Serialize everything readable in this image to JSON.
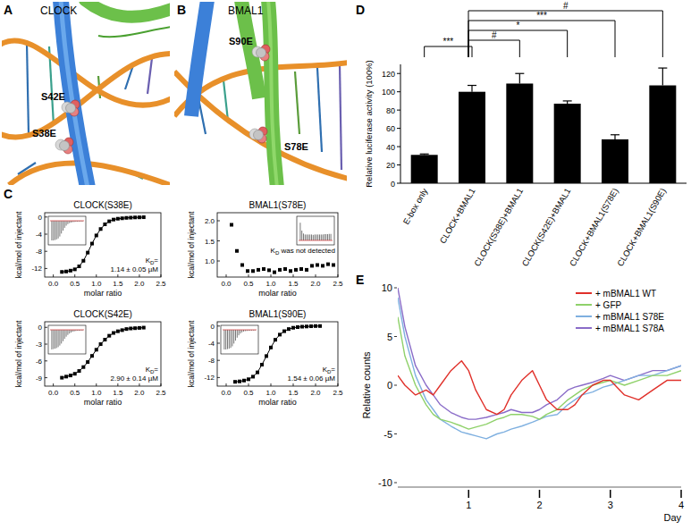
{
  "panel_labels": [
    "A",
    "B",
    "C",
    "D",
    "E"
  ],
  "structures": [
    {
      "title": "CLOCK",
      "sites": [
        "S42E",
        "S38E"
      ]
    },
    {
      "title": "BMAL1",
      "sites": [
        "S90E",
        "S78E"
      ]
    }
  ],
  "chart_data": [
    {
      "type": "scatter",
      "title": "CLOCK(S38E)",
      "x_label": "molar ratio",
      "y_label": "kcal/mol of injectant",
      "xlim": [
        -0.2,
        2.5
      ],
      "xticks": [
        {
          "value": 0,
          "label": "0.0"
        },
        {
          "value": 0.5,
          "label": "0.5"
        },
        {
          "value": 1,
          "label": "1.0"
        },
        {
          "value": 1.5,
          "label": "1.5"
        },
        {
          "value": 2,
          "label": "2.0"
        },
        {
          "value": 2.5,
          "label": "2.5"
        }
      ],
      "ylim": [
        -14,
        1
      ],
      "yticks": [
        0,
        -4,
        -8,
        -12
      ],
      "series": [
        {
          "color": "#000000",
          "marker": "square",
          "line_style": "solid",
          "x": [
            0.2,
            0.3,
            0.4,
            0.5,
            0.6,
            0.7,
            0.8,
            0.9,
            1,
            1.1,
            1.2,
            1.3,
            1.4,
            1.5,
            1.6,
            1.7,
            1.8,
            1.9,
            2,
            2.1
          ],
          "values": [
            -12.8,
            -12.7,
            -12.5,
            -12.2,
            -11.5,
            -10.2,
            -8.3,
            -6.2,
            -4.3,
            -2.8,
            -1.7,
            -1,
            -0.6,
            -0.4,
            -0.3,
            -0.2,
            -0.15,
            -0.1,
            -0.08,
            -0.05
          ]
        }
      ],
      "inset_peaks": [
        -1,
        -1,
        -0.98,
        -0.95,
        -0.9,
        -0.8,
        -0.65,
        -0.5,
        -0.36,
        -0.25,
        -0.17,
        -0.12,
        -0.09,
        -0.07,
        -0.06,
        -0.05,
        -0.05,
        -0.04,
        -0.04,
        -0.04
      ],
      "annotations": [
        {
          "text": "K",
          "sub": "D",
          "after": "="
        },
        {
          "text": "1.14 ± 0.05 µM"
        }
      ]
    },
    {
      "type": "scatter",
      "title": "BMAL1(S78E)",
      "x_label": "molar ratio",
      "y_label": "kcal/mol of injectant",
      "xlim": [
        -0.2,
        2.5
      ],
      "xticks": [
        {
          "value": 0,
          "label": "0.0"
        },
        {
          "value": 0.5,
          "label": "0.5"
        },
        {
          "value": 1,
          "label": "1.0"
        },
        {
          "value": 1.5,
          "label": "1.5"
        },
        {
          "value": 2,
          "label": "2.0"
        },
        {
          "value": 2.5,
          "label": "2.5"
        }
      ],
      "ylim": [
        0.6,
        2.2
      ],
      "yticks": [
        {
          "value": 1,
          "label": "1.0"
        },
        {
          "value": 1.5,
          "label": "1.5"
        },
        {
          "value": 2,
          "label": "2.0"
        }
      ],
      "series": [
        {
          "color": "#000000",
          "marker": "square",
          "line_style": "none",
          "x": [
            0.12,
            0.24,
            0.36,
            0.48,
            0.6,
            0.72,
            0.84,
            0.96,
            1.08,
            1.2,
            1.32,
            1.44,
            1.56,
            1.68,
            1.8,
            1.92,
            2.04,
            2.16,
            2.28,
            2.4
          ],
          "values": [
            1.9,
            1.25,
            0.9,
            0.75,
            0.75,
            0.78,
            0.8,
            0.77,
            0.72,
            0.78,
            0.8,
            0.75,
            0.78,
            0.8,
            0.78,
            0.88,
            0.9,
            0.88,
            0.92,
            0.9
          ]
        }
      ],
      "inset_peaks": [
        0.9,
        0.5,
        0.35,
        0.3,
        0.3,
        0.3,
        0.3,
        0.3,
        0.28,
        0.3,
        0.3,
        0.3,
        0.3,
        0.3,
        0.3,
        0.32,
        0.32,
        0.32,
        0.33,
        0.33
      ],
      "annotations": [
        {
          "text": "K",
          "sub": "D",
          "after": " was not detected"
        }
      ]
    },
    {
      "type": "scatter",
      "title": "CLOCK(S42E)",
      "x_label": "molar ratio",
      "y_label": "kcal/mol of injectant",
      "xlim": [
        -0.2,
        2.5
      ],
      "xticks": [
        {
          "value": 0,
          "label": "0.0"
        },
        {
          "value": 0.5,
          "label": "0.5"
        },
        {
          "value": 1,
          "label": "1.0"
        },
        {
          "value": 1.5,
          "label": "1.5"
        },
        {
          "value": 2,
          "label": "2.0"
        },
        {
          "value": 2.5,
          "label": "2.5"
        }
      ],
      "ylim": [
        -10.5,
        1
      ],
      "yticks": [
        0,
        -3,
        -6,
        -9
      ],
      "series": [
        {
          "color": "#000000",
          "marker": "square",
          "line_style": "solid",
          "x": [
            0.2,
            0.3,
            0.4,
            0.5,
            0.6,
            0.7,
            0.8,
            0.9,
            1,
            1.1,
            1.2,
            1.3,
            1.4,
            1.5,
            1.6,
            1.7,
            1.8,
            1.9,
            2,
            2.1
          ],
          "values": [
            -9,
            -8.8,
            -8.6,
            -8.3,
            -7.8,
            -7.1,
            -6.2,
            -5.1,
            -4,
            -3,
            -2.2,
            -1.5,
            -1,
            -0.7,
            -0.5,
            -0.3,
            -0.2,
            -0.15,
            -0.1,
            -0.05
          ]
        }
      ],
      "inset_peaks": [
        -1,
        -0.98,
        -0.96,
        -0.93,
        -0.88,
        -0.8,
        -0.7,
        -0.58,
        -0.46,
        -0.35,
        -0.26,
        -0.19,
        -0.14,
        -0.1,
        -0.08,
        -0.06,
        -0.05,
        -0.05,
        -0.04,
        -0.04
      ],
      "annotations": [
        {
          "text": "K",
          "sub": "D",
          "after": "="
        },
        {
          "text": "2.90 ± 0.14 µM"
        }
      ]
    },
    {
      "type": "scatter",
      "title": "BMAL1(S90E)",
      "x_label": "molar ratio",
      "y_label": "kcal/mol of injectant",
      "xlim": [
        -0.2,
        2.5
      ],
      "xticks": [
        {
          "value": 0,
          "label": "0.0"
        },
        {
          "value": 0.5,
          "label": "0.5"
        },
        {
          "value": 1,
          "label": "1.0"
        },
        {
          "value": 1.5,
          "label": "1.5"
        },
        {
          "value": 2,
          "label": "2.0"
        },
        {
          "value": 2.5,
          "label": "2.5"
        }
      ],
      "ylim": [
        -14,
        1
      ],
      "yticks": [
        0,
        -4,
        -8,
        -12
      ],
      "series": [
        {
          "color": "#000000",
          "marker": "square",
          "line_style": "solid",
          "x": [
            0.2,
            0.3,
            0.4,
            0.5,
            0.6,
            0.7,
            0.8,
            0.9,
            1,
            1.1,
            1.2,
            1.3,
            1.4,
            1.5,
            1.6,
            1.7,
            1.8,
            1.9,
            2,
            2.1
          ],
          "values": [
            -13,
            -12.9,
            -12.7,
            -12.4,
            -11.8,
            -10.8,
            -9,
            -7,
            -5,
            -3.2,
            -2,
            -1.2,
            -0.7,
            -0.4,
            -0.25,
            -0.15,
            -0.1,
            -0.05,
            0,
            0
          ]
        }
      ],
      "inset_peaks": [
        -1,
        -1,
        -0.98,
        -0.96,
        -0.92,
        -0.84,
        -0.7,
        -0.55,
        -0.4,
        -0.28,
        -0.19,
        -0.13,
        -0.09,
        -0.07,
        -0.06,
        -0.05,
        -0.05,
        -0.04,
        -0.04,
        -0.04
      ],
      "annotations": [
        {
          "text": "K",
          "sub": "D",
          "after": "="
        },
        {
          "text": "1.54 ± 0.06 µM"
        }
      ]
    },
    {
      "type": "bar",
      "y_label": "Relative luciferase activity (100%)",
      "categories": [
        "E-box only",
        "CLOCK+BMAL1",
        "CLOCK(S38E)+BMAL1",
        "CLOCK(S42E)+BMAL1",
        "CLOCK+BMAL1(S78E)",
        "CLOCK+BMAL1(S90E)"
      ],
      "values": [
        31,
        100,
        109,
        87,
        48,
        107
      ],
      "errors": [
        1,
        7,
        11,
        3,
        5,
        19
      ],
      "color": "#000000",
      "ylim": [
        0,
        130
      ],
      "yticks": [
        0,
        20,
        40,
        60,
        80,
        100,
        120
      ],
      "significance": [
        {
          "from": 0,
          "to": 1,
          "label": "***"
        },
        {
          "from": 1,
          "to": 2,
          "label": "#"
        },
        {
          "from": 1,
          "to": 3,
          "label": "*"
        },
        {
          "from": 1,
          "to": 4,
          "label": "***"
        },
        {
          "from": 1,
          "to": 5,
          "label": "#"
        }
      ]
    },
    {
      "type": "line",
      "x_label": "Day",
      "y_label": "Relative counts",
      "xlim": [
        0,
        4
      ],
      "xticks": [
        1,
        2,
        3,
        4
      ],
      "ylim": [
        -10,
        10
      ],
      "yticks": [
        -10,
        -5,
        0,
        5,
        10
      ],
      "legend": "upper right",
      "x": [
        0,
        0.1,
        0.25,
        0.4,
        0.5,
        0.6,
        0.75,
        0.9,
        1,
        1.1,
        1.25,
        1.4,
        1.5,
        1.6,
        1.75,
        1.9,
        2,
        2.1,
        2.25,
        2.4,
        2.5,
        2.6,
        2.75,
        2.9,
        3,
        3.2,
        3.4,
        3.6,
        3.8,
        4
      ],
      "series": [
        {
          "name": "+ mBMAL1 WT",
          "color": "#e0302a",
          "values": [
            1,
            0,
            -1,
            -0.5,
            -1,
            0,
            1.5,
            2.5,
            1.5,
            -0.5,
            -2.5,
            -3,
            -2.5,
            -1,
            0.5,
            1.5,
            0,
            -1.5,
            -2.5,
            -2.5,
            -2,
            -1,
            0,
            0.5,
            0.5,
            -1,
            -1.5,
            -0.5,
            0.5,
            0.5
          ]
        },
        {
          "name": "+ GFP",
          "color": "#8fd16a",
          "values": [
            7,
            3,
            0,
            -2,
            -3,
            -3.5,
            -3.8,
            -4.2,
            -4.5,
            -4.3,
            -4,
            -3.5,
            -3.3,
            -3,
            -3,
            -3.2,
            -3.5,
            -3,
            -2.5,
            -1.5,
            -1,
            -0.5,
            0,
            0.3,
            0.5,
            0,
            0.5,
            1,
            1,
            1.5
          ]
        },
        {
          "name": "+ mBMAL1 S78E",
          "color": "#7fb0e0",
          "values": [
            9,
            5,
            1,
            -1.5,
            -2.5,
            -3.5,
            -4.2,
            -4.8,
            -5,
            -5.2,
            -5.5,
            -5,
            -4.8,
            -4.5,
            -4.2,
            -3.8,
            -3.5,
            -3.2,
            -3,
            -2,
            -1.5,
            -1,
            -0.7,
            -0.2,
            0,
            0.5,
            1,
            1,
            1.5,
            2
          ]
        },
        {
          "name": "+ mBMAL1 S78A",
          "color": "#8a6cc8",
          "values": [
            10,
            6,
            2,
            0,
            -1,
            -2,
            -2.8,
            -3.3,
            -3.5,
            -3.5,
            -3.3,
            -3,
            -2.8,
            -2.5,
            -2.8,
            -2.8,
            -2.5,
            -2,
            -1.5,
            -0.5,
            -0.2,
            0,
            0.3,
            0.7,
            1,
            0.5,
            1,
            1.5,
            1.5,
            2
          ]
        }
      ]
    }
  ]
}
